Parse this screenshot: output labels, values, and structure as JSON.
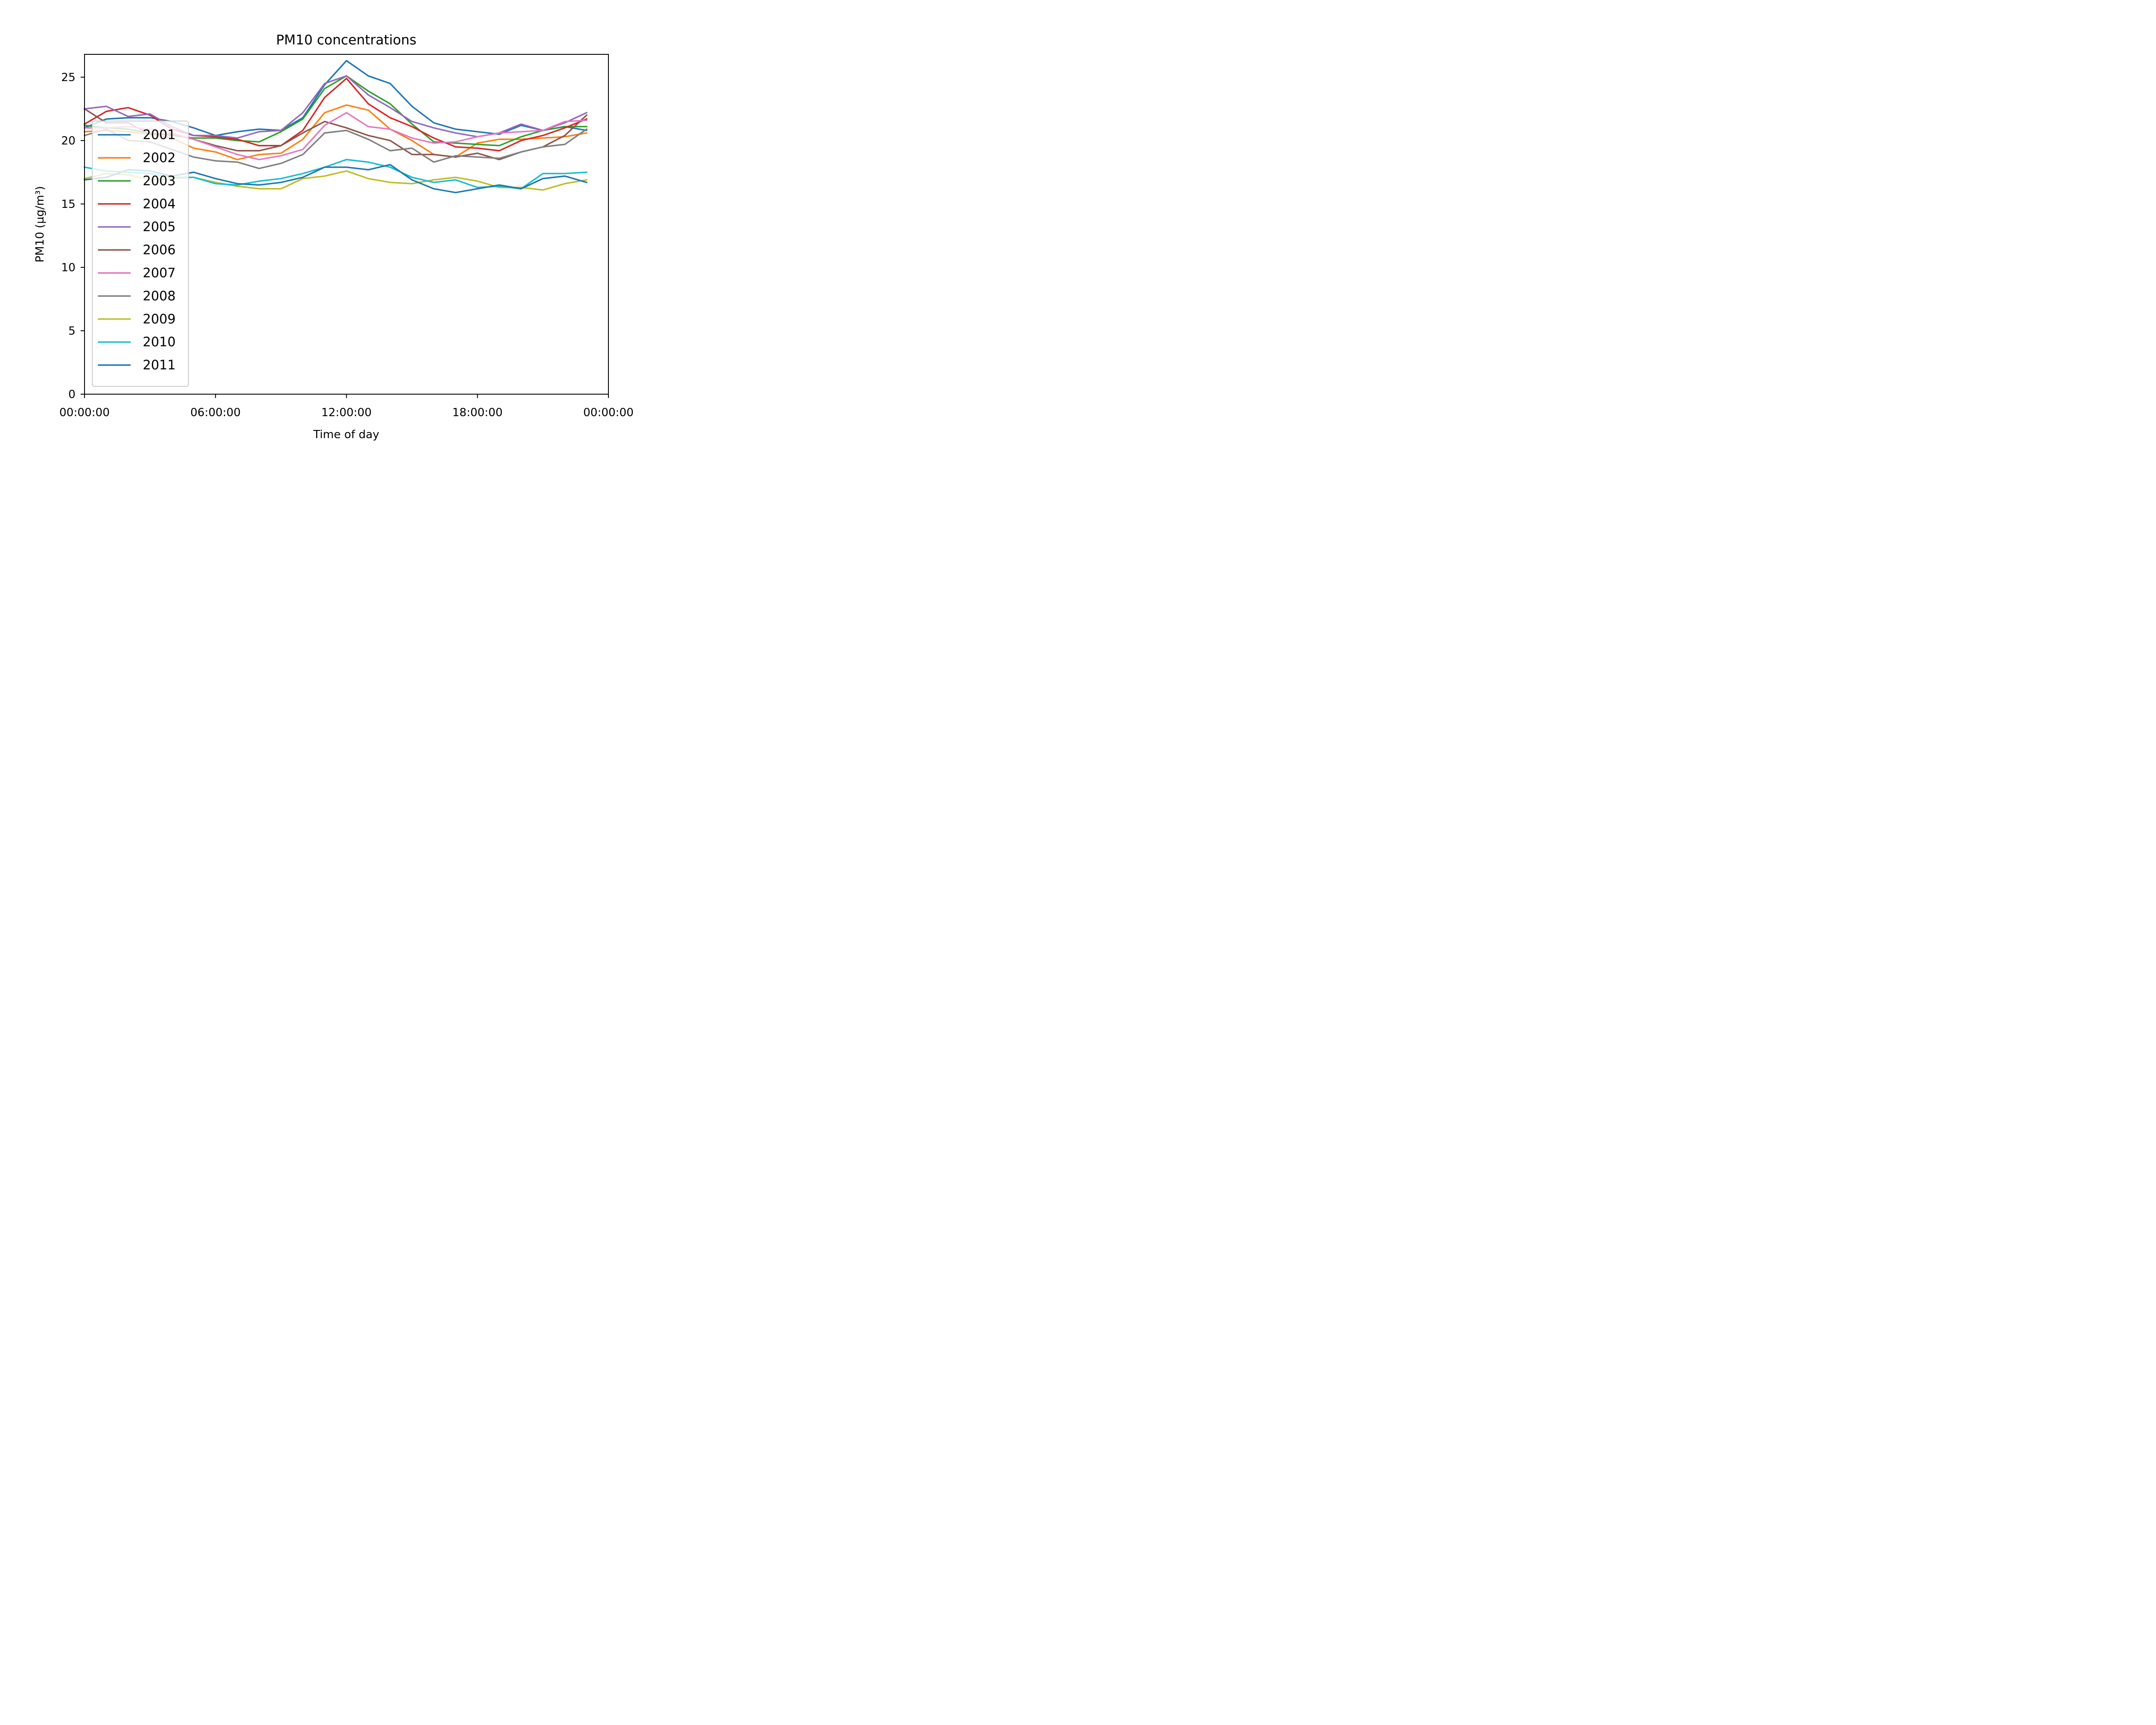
{
  "chart_data": {
    "type": "line",
    "title": "PM10 concentrations",
    "xlabel": "Time of day",
    "ylabel": "PM10 (µg/m³)",
    "x": [
      "00:00",
      "01:00",
      "02:00",
      "03:00",
      "04:00",
      "05:00",
      "06:00",
      "07:00",
      "08:00",
      "09:00",
      "10:00",
      "11:00",
      "12:00",
      "13:00",
      "14:00",
      "15:00",
      "16:00",
      "17:00",
      "18:00",
      "19:00",
      "20:00",
      "21:00",
      "22:00",
      "23:00"
    ],
    "xlim_hours": [
      0,
      24
    ],
    "ylim": [
      0,
      26.8
    ],
    "x_ticks": [
      {
        "hour": 0,
        "label": "00:00:00"
      },
      {
        "hour": 6,
        "label": "06:00:00"
      },
      {
        "hour": 12,
        "label": "12:00:00"
      },
      {
        "hour": 18,
        "label": "18:00:00"
      },
      {
        "hour": 24,
        "label": "00:00:00"
      }
    ],
    "y_ticks": [
      {
        "value": 0,
        "label": "0"
      },
      {
        "value": 5,
        "label": "5"
      },
      {
        "value": 10,
        "label": "10"
      },
      {
        "value": 15,
        "label": "15"
      },
      {
        "value": 20,
        "label": "20"
      },
      {
        "value": 25,
        "label": "25"
      }
    ],
    "grid": false,
    "legend_position": "lower-left",
    "series": [
      {
        "name": "2001",
        "color": "#1f77b4",
        "values": [
          21.0,
          21.7,
          21.8,
          21.8,
          21.5,
          21.0,
          20.4,
          20.7,
          20.9,
          20.8,
          21.8,
          24.4,
          26.3,
          25.1,
          24.5,
          22.7,
          21.4,
          20.9,
          20.7,
          20.5,
          21.2,
          20.8,
          21.1,
          20.8
        ]
      },
      {
        "name": "2002",
        "color": "#ff7f0e",
        "values": [
          20.7,
          20.8,
          20.7,
          20.5,
          20.2,
          19.4,
          19.1,
          18.5,
          18.9,
          19.0,
          20.1,
          22.2,
          22.8,
          22.4,
          20.9,
          20.0,
          18.9,
          18.7,
          19.8,
          20.1,
          20.1,
          20.2,
          20.3,
          20.6
        ]
      },
      {
        "name": "2003",
        "color": "#2ca02c",
        "values": [
          21.2,
          21.0,
          20.9,
          20.6,
          20.4,
          20.2,
          20.2,
          20.0,
          19.9,
          20.7,
          21.7,
          24.1,
          25.1,
          23.9,
          22.9,
          21.3,
          19.9,
          19.8,
          19.7,
          19.6,
          20.3,
          20.8,
          21.1,
          21.1
        ]
      },
      {
        "name": "2004",
        "color": "#d62728",
        "values": [
          21.3,
          22.3,
          22.6,
          22.0,
          20.9,
          20.4,
          20.3,
          20.1,
          19.6,
          19.6,
          20.8,
          23.4,
          24.9,
          22.9,
          21.8,
          21.1,
          20.2,
          19.5,
          19.4,
          19.2,
          20.0,
          20.4,
          21.0,
          21.7
        ]
      },
      {
        "name": "2005",
        "color": "#9467bd",
        "values": [
          22.5,
          22.7,
          21.9,
          22.1,
          21.1,
          20.4,
          20.4,
          20.2,
          20.7,
          20.8,
          22.2,
          24.5,
          25.1,
          23.6,
          22.6,
          21.5,
          21.0,
          20.6,
          20.3,
          20.6,
          21.3,
          20.8,
          21.4,
          22.2
        ]
      },
      {
        "name": "2006",
        "color": "#8c564b",
        "values": [
          22.5,
          21.4,
          21.4,
          20.5,
          20.5,
          20.1,
          19.6,
          19.2,
          19.2,
          19.6,
          20.6,
          21.5,
          21.0,
          20.4,
          20.0,
          18.9,
          18.9,
          18.7,
          19.0,
          18.5,
          19.1,
          19.5,
          20.4,
          22.0
        ]
      },
      {
        "name": "2007",
        "color": "#e377c2",
        "values": [
          21.0,
          21.0,
          21.1,
          20.9,
          20.6,
          20.1,
          19.5,
          18.9,
          18.5,
          18.8,
          19.3,
          21.2,
          22.2,
          21.1,
          20.9,
          20.2,
          19.8,
          19.9,
          20.3,
          20.6,
          20.7,
          20.8,
          21.5,
          21.6
        ]
      },
      {
        "name": "2008",
        "color": "#7f7f7f",
        "values": [
          20.4,
          20.9,
          20.0,
          19.9,
          19.3,
          18.7,
          18.4,
          18.3,
          17.8,
          18.2,
          18.9,
          20.6,
          20.8,
          20.1,
          19.2,
          19.4,
          18.3,
          18.8,
          18.7,
          18.6,
          19.1,
          19.5,
          19.7,
          20.9
        ]
      },
      {
        "name": "2009",
        "color": "#bcbd22",
        "values": [
          17.0,
          17.4,
          17.3,
          16.9,
          17.0,
          17.1,
          16.7,
          16.4,
          16.2,
          16.2,
          17.0,
          17.2,
          17.6,
          17.0,
          16.7,
          16.6,
          16.9,
          17.1,
          16.8,
          16.3,
          16.3,
          16.1,
          16.6,
          16.9
        ]
      },
      {
        "name": "2010",
        "color": "#17becf",
        "values": [
          17.9,
          17.6,
          17.5,
          17.4,
          17.1,
          17.1,
          16.6,
          16.5,
          16.8,
          17.0,
          17.4,
          17.9,
          18.5,
          18.3,
          17.9,
          17.1,
          16.7,
          16.9,
          16.3,
          16.4,
          16.2,
          17.4,
          17.4,
          17.5
        ]
      },
      {
        "name": "2011",
        "color": "#1f77b4",
        "values": [
          16.9,
          17.1,
          17.7,
          17.6,
          17.2,
          17.5,
          17.0,
          16.6,
          16.5,
          16.7,
          17.1,
          17.9,
          17.9,
          17.7,
          18.1,
          16.9,
          16.2,
          15.9,
          16.2,
          16.5,
          16.2,
          17.0,
          17.2,
          16.7
        ]
      }
    ]
  }
}
